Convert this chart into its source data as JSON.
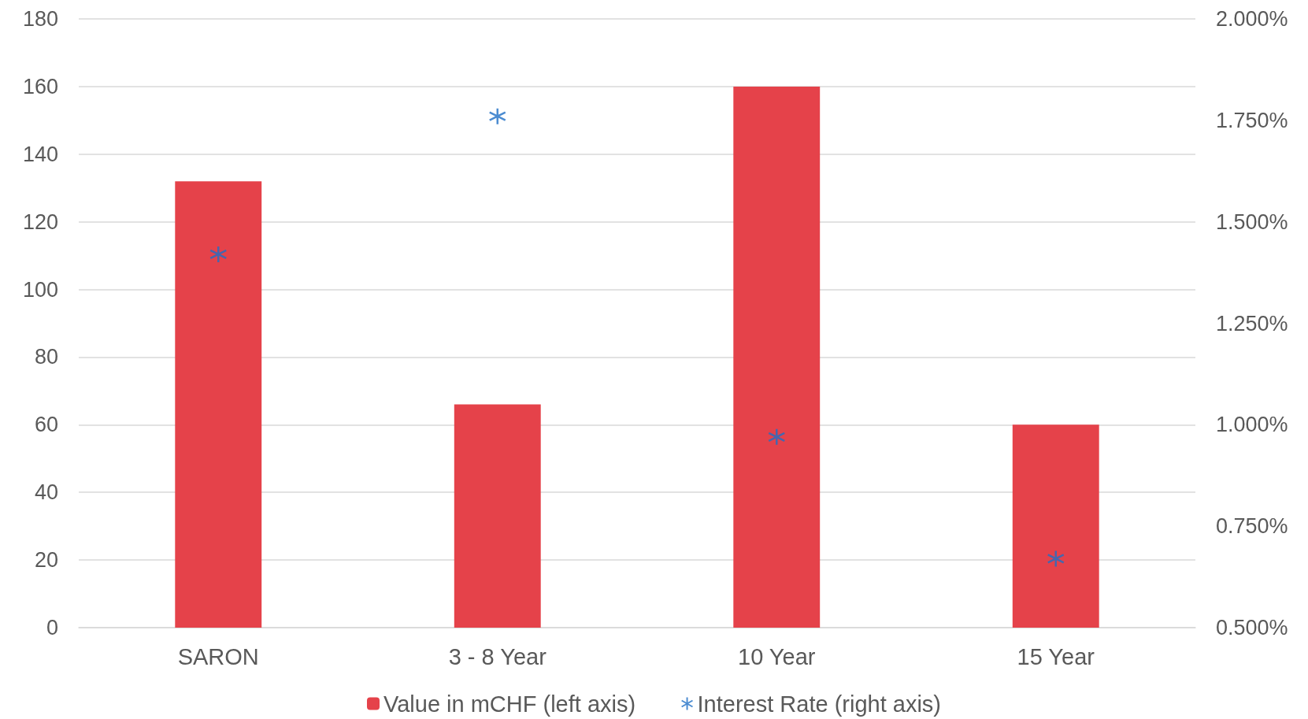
{
  "chart_data": {
    "type": "bar",
    "categories": [
      "SARON",
      "3 - 8 Year",
      "10 Year",
      "15 Year"
    ],
    "series": [
      {
        "name": "Value in mCHF (left axis)",
        "color": "#e5424a",
        "values": [
          132,
          66,
          160,
          60
        ]
      },
      {
        "name": "Interest Rate (right axis)",
        "type": "scatter",
        "axis": "y2",
        "marker": "cross",
        "color": "#1f6fc5",
        "values": [
          1.42,
          1.76,
          0.97,
          0.67
        ]
      }
    ],
    "ylim": [
      0,
      180
    ],
    "yticks": [
      0,
      20,
      40,
      60,
      80,
      100,
      120,
      140,
      160,
      180
    ],
    "y2lim": [
      0.5,
      2.0
    ],
    "y2ticks": [
      {
        "value": 0.5,
        "label": "0.500%"
      },
      {
        "value": 0.75,
        "label": "0.750%"
      },
      {
        "value": 1.0,
        "label": "1.000%"
      },
      {
        "value": 1.25,
        "label": "1.250%"
      },
      {
        "value": 1.5,
        "label": "1.500%"
      },
      {
        "value": 1.75,
        "label": "1.750%"
      },
      {
        "value": 2.0,
        "label": "2.000%"
      }
    ],
    "grid": true,
    "legend": "bottom"
  }
}
